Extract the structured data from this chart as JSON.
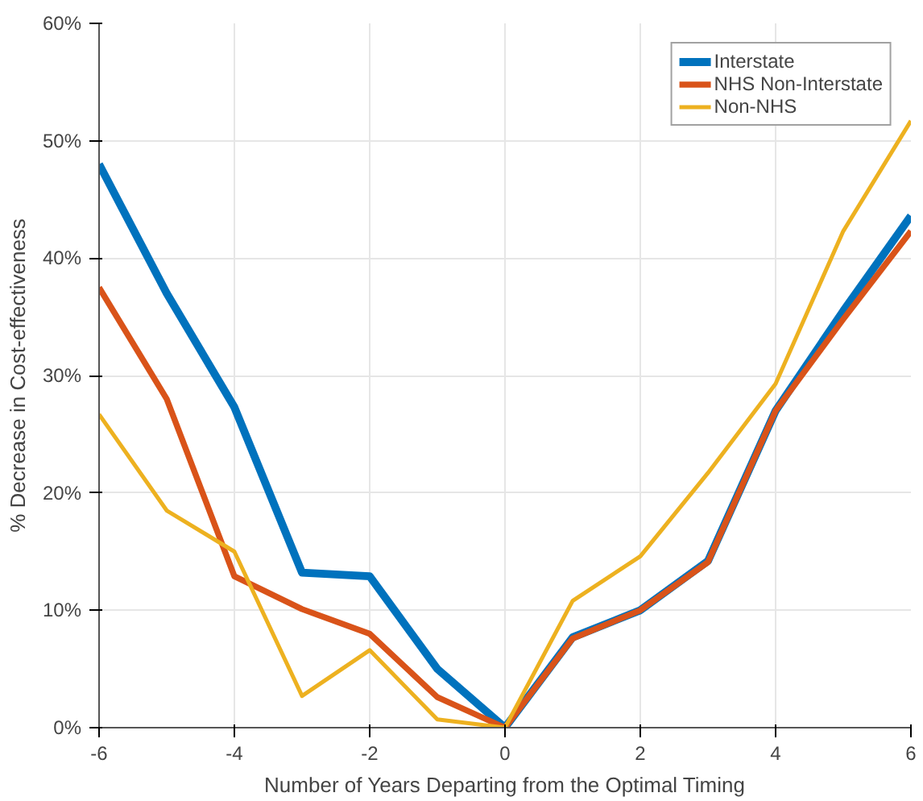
{
  "chart_data": {
    "type": "line",
    "xlabel": "Number of Years Departing from the Optimal Timing",
    "ylabel": "% Decrease in Cost-effectiveness",
    "x": [
      -6,
      -5,
      -4,
      -3,
      -2,
      -1,
      0,
      1,
      2,
      3,
      4,
      5,
      6
    ],
    "series": [
      {
        "name": "Interstate",
        "color": "#0072bd",
        "values": [
          48,
          37,
          27.3,
          13.2,
          12.9,
          5,
          0,
          7.7,
          10,
          14.2,
          27,
          35.5,
          43.6
        ]
      },
      {
        "name": "NHS Non-Interstate",
        "color": "#d95319",
        "values": [
          37.5,
          28,
          12.9,
          10.1,
          8,
          2.6,
          0,
          7.6,
          10,
          14.1,
          27,
          34.8,
          42.3
        ]
      },
      {
        "name": "Non-NHS",
        "color": "#edb120",
        "values": [
          26.7,
          18.5,
          15,
          2.7,
          6.6,
          0.7,
          0,
          10.8,
          14.6,
          21.7,
          29.3,
          42.3,
          51.7
        ]
      }
    ],
    "xlim": [
      -6,
      6
    ],
    "xticks": [
      -6,
      -4,
      -2,
      0,
      2,
      4,
      6
    ],
    "ylim": [
      0,
      60
    ],
    "yticks": [
      {
        "value": 0,
        "label": "0%"
      },
      {
        "value": 10,
        "label": "10%"
      },
      {
        "value": 20,
        "label": "20%"
      },
      {
        "value": 30,
        "label": "30%"
      },
      {
        "value": 40,
        "label": "40%"
      },
      {
        "value": 50,
        "label": "50%"
      },
      {
        "value": 60,
        "label": "60%"
      }
    ],
    "grid": true,
    "legend": "top right",
    "marker": "none",
    "line_style": "solid"
  }
}
